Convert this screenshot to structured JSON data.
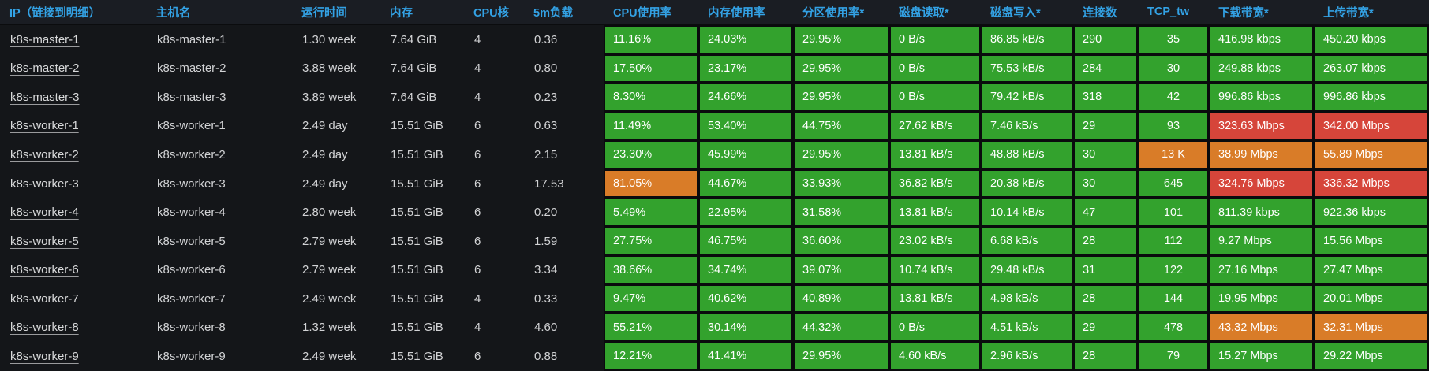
{
  "colors": {
    "green": "#33a22d",
    "orange": "#d97c28",
    "red": "#d6453a"
  },
  "header": {
    "columns": [
      "IP（链接到明细）",
      "主机名",
      "运行时间",
      "内存",
      "CPU核",
      "5m负载",
      "CPU使用率",
      "内存使用率",
      "分区使用率*",
      "磁盘读取*",
      "磁盘写入*",
      "连接数",
      "TCP_tw",
      "下载带宽*",
      "上传带宽*"
    ]
  },
  "rows": [
    {
      "ip": "k8s-master-1",
      "hostname": "k8s-master-1",
      "uptime": "1.30 week",
      "memory": "7.64 GiB",
      "cores": "4",
      "load5m": "0.36",
      "cpu": {
        "v": "11.16%",
        "c": "green"
      },
      "mem_usage": {
        "v": "24.03%",
        "c": "green"
      },
      "partition": {
        "v": "29.95%",
        "c": "green"
      },
      "disk_read": {
        "v": "0 B/s",
        "c": "green"
      },
      "disk_write": {
        "v": "86.85 kB/s",
        "c": "green"
      },
      "connections": {
        "v": "290",
        "c": "green"
      },
      "tcp_tw": {
        "v": "35",
        "c": "green"
      },
      "download": {
        "v": "416.98 kbps",
        "c": "green"
      },
      "upload": {
        "v": "450.20 kbps",
        "c": "green"
      }
    },
    {
      "ip": "k8s-master-2",
      "hostname": "k8s-master-2",
      "uptime": "3.88 week",
      "memory": "7.64 GiB",
      "cores": "4",
      "load5m": "0.80",
      "cpu": {
        "v": "17.50%",
        "c": "green"
      },
      "mem_usage": {
        "v": "23.17%",
        "c": "green"
      },
      "partition": {
        "v": "29.95%",
        "c": "green"
      },
      "disk_read": {
        "v": "0 B/s",
        "c": "green"
      },
      "disk_write": {
        "v": "75.53 kB/s",
        "c": "green"
      },
      "connections": {
        "v": "284",
        "c": "green"
      },
      "tcp_tw": {
        "v": "30",
        "c": "green"
      },
      "download": {
        "v": "249.88 kbps",
        "c": "green"
      },
      "upload": {
        "v": "263.07 kbps",
        "c": "green"
      }
    },
    {
      "ip": "k8s-master-3",
      "hostname": "k8s-master-3",
      "uptime": "3.89 week",
      "memory": "7.64 GiB",
      "cores": "4",
      "load5m": "0.23",
      "cpu": {
        "v": "8.30%",
        "c": "green"
      },
      "mem_usage": {
        "v": "24.66%",
        "c": "green"
      },
      "partition": {
        "v": "29.95%",
        "c": "green"
      },
      "disk_read": {
        "v": "0 B/s",
        "c": "green"
      },
      "disk_write": {
        "v": "79.42 kB/s",
        "c": "green"
      },
      "connections": {
        "v": "318",
        "c": "green"
      },
      "tcp_tw": {
        "v": "42",
        "c": "green"
      },
      "download": {
        "v": "996.86 kbps",
        "c": "green"
      },
      "upload": {
        "v": "996.86 kbps",
        "c": "green"
      }
    },
    {
      "ip": "k8s-worker-1",
      "hostname": "k8s-worker-1",
      "uptime": "2.49 day",
      "memory": "15.51 GiB",
      "cores": "6",
      "load5m": "0.63",
      "cpu": {
        "v": "11.49%",
        "c": "green"
      },
      "mem_usage": {
        "v": "53.40%",
        "c": "green"
      },
      "partition": {
        "v": "44.75%",
        "c": "green"
      },
      "disk_read": {
        "v": "27.62 kB/s",
        "c": "green"
      },
      "disk_write": {
        "v": "7.46 kB/s",
        "c": "green"
      },
      "connections": {
        "v": "29",
        "c": "green"
      },
      "tcp_tw": {
        "v": "93",
        "c": "green"
      },
      "download": {
        "v": "323.63 Mbps",
        "c": "red"
      },
      "upload": {
        "v": "342.00 Mbps",
        "c": "red"
      }
    },
    {
      "ip": "k8s-worker-2",
      "hostname": "k8s-worker-2",
      "uptime": "2.49 day",
      "memory": "15.51 GiB",
      "cores": "6",
      "load5m": "2.15",
      "cpu": {
        "v": "23.30%",
        "c": "green"
      },
      "mem_usage": {
        "v": "45.99%",
        "c": "green"
      },
      "partition": {
        "v": "29.95%",
        "c": "green"
      },
      "disk_read": {
        "v": "13.81 kB/s",
        "c": "green"
      },
      "disk_write": {
        "v": "48.88 kB/s",
        "c": "green"
      },
      "connections": {
        "v": "30",
        "c": "green"
      },
      "tcp_tw": {
        "v": "13 K",
        "c": "orange"
      },
      "download": {
        "v": "38.99 Mbps",
        "c": "orange"
      },
      "upload": {
        "v": "55.89 Mbps",
        "c": "orange"
      }
    },
    {
      "ip": "k8s-worker-3",
      "hostname": "k8s-worker-3",
      "uptime": "2.49 day",
      "memory": "15.51 GiB",
      "cores": "6",
      "load5m": "17.53",
      "cpu": {
        "v": "81.05%",
        "c": "orange"
      },
      "mem_usage": {
        "v": "44.67%",
        "c": "green"
      },
      "partition": {
        "v": "33.93%",
        "c": "green"
      },
      "disk_read": {
        "v": "36.82 kB/s",
        "c": "green"
      },
      "disk_write": {
        "v": "20.38 kB/s",
        "c": "green"
      },
      "connections": {
        "v": "30",
        "c": "green"
      },
      "tcp_tw": {
        "v": "645",
        "c": "green"
      },
      "download": {
        "v": "324.76 Mbps",
        "c": "red"
      },
      "upload": {
        "v": "336.32 Mbps",
        "c": "red"
      }
    },
    {
      "ip": "k8s-worker-4",
      "hostname": "k8s-worker-4",
      "uptime": "2.80 week",
      "memory": "15.51 GiB",
      "cores": "6",
      "load5m": "0.20",
      "cpu": {
        "v": "5.49%",
        "c": "green"
      },
      "mem_usage": {
        "v": "22.95%",
        "c": "green"
      },
      "partition": {
        "v": "31.58%",
        "c": "green"
      },
      "disk_read": {
        "v": "13.81 kB/s",
        "c": "green"
      },
      "disk_write": {
        "v": "10.14 kB/s",
        "c": "green"
      },
      "connections": {
        "v": "47",
        "c": "green"
      },
      "tcp_tw": {
        "v": "101",
        "c": "green"
      },
      "download": {
        "v": "811.39 kbps",
        "c": "green"
      },
      "upload": {
        "v": "922.36 kbps",
        "c": "green"
      }
    },
    {
      "ip": "k8s-worker-5",
      "hostname": "k8s-worker-5",
      "uptime": "2.79 week",
      "memory": "15.51 GiB",
      "cores": "6",
      "load5m": "1.59",
      "cpu": {
        "v": "27.75%",
        "c": "green"
      },
      "mem_usage": {
        "v": "46.75%",
        "c": "green"
      },
      "partition": {
        "v": "36.60%",
        "c": "green"
      },
      "disk_read": {
        "v": "23.02 kB/s",
        "c": "green"
      },
      "disk_write": {
        "v": "6.68 kB/s",
        "c": "green"
      },
      "connections": {
        "v": "28",
        "c": "green"
      },
      "tcp_tw": {
        "v": "112",
        "c": "green"
      },
      "download": {
        "v": "9.27 Mbps",
        "c": "green"
      },
      "upload": {
        "v": "15.56 Mbps",
        "c": "green"
      }
    },
    {
      "ip": "k8s-worker-6",
      "hostname": "k8s-worker-6",
      "uptime": "2.79 week",
      "memory": "15.51 GiB",
      "cores": "6",
      "load5m": "3.34",
      "cpu": {
        "v": "38.66%",
        "c": "green"
      },
      "mem_usage": {
        "v": "34.74%",
        "c": "green"
      },
      "partition": {
        "v": "39.07%",
        "c": "green"
      },
      "disk_read": {
        "v": "10.74 kB/s",
        "c": "green"
      },
      "disk_write": {
        "v": "29.48 kB/s",
        "c": "green"
      },
      "connections": {
        "v": "31",
        "c": "green"
      },
      "tcp_tw": {
        "v": "122",
        "c": "green"
      },
      "download": {
        "v": "27.16 Mbps",
        "c": "green"
      },
      "upload": {
        "v": "27.47 Mbps",
        "c": "green"
      }
    },
    {
      "ip": "k8s-worker-7",
      "hostname": "k8s-worker-7",
      "uptime": "2.49 week",
      "memory": "15.51 GiB",
      "cores": "4",
      "load5m": "0.33",
      "cpu": {
        "v": "9.47%",
        "c": "green"
      },
      "mem_usage": {
        "v": "40.62%",
        "c": "green"
      },
      "partition": {
        "v": "40.89%",
        "c": "green"
      },
      "disk_read": {
        "v": "13.81 kB/s",
        "c": "green"
      },
      "disk_write": {
        "v": "4.98 kB/s",
        "c": "green"
      },
      "connections": {
        "v": "28",
        "c": "green"
      },
      "tcp_tw": {
        "v": "144",
        "c": "green"
      },
      "download": {
        "v": "19.95 Mbps",
        "c": "green"
      },
      "upload": {
        "v": "20.01 Mbps",
        "c": "green"
      }
    },
    {
      "ip": "k8s-worker-8",
      "hostname": "k8s-worker-8",
      "uptime": "1.32 week",
      "memory": "15.51 GiB",
      "cores": "4",
      "load5m": "4.60",
      "cpu": {
        "v": "55.21%",
        "c": "green"
      },
      "mem_usage": {
        "v": "30.14%",
        "c": "green"
      },
      "partition": {
        "v": "44.32%",
        "c": "green"
      },
      "disk_read": {
        "v": "0 B/s",
        "c": "green"
      },
      "disk_write": {
        "v": "4.51 kB/s",
        "c": "green"
      },
      "connections": {
        "v": "29",
        "c": "green"
      },
      "tcp_tw": {
        "v": "478",
        "c": "green"
      },
      "download": {
        "v": "43.32 Mbps",
        "c": "orange"
      },
      "upload": {
        "v": "32.31 Mbps",
        "c": "orange"
      }
    },
    {
      "ip": "k8s-worker-9",
      "hostname": "k8s-worker-9",
      "uptime": "2.49 week",
      "memory": "15.51 GiB",
      "cores": "6",
      "load5m": "0.88",
      "cpu": {
        "v": "12.21%",
        "c": "green"
      },
      "mem_usage": {
        "v": "41.41%",
        "c": "green"
      },
      "partition": {
        "v": "29.95%",
        "c": "green"
      },
      "disk_read": {
        "v": "4.60 kB/s",
        "c": "green"
      },
      "disk_write": {
        "v": "2.96 kB/s",
        "c": "green"
      },
      "connections": {
        "v": "28",
        "c": "green"
      },
      "tcp_tw": {
        "v": "79",
        "c": "green"
      },
      "download": {
        "v": "15.27 Mbps",
        "c": "green"
      },
      "upload": {
        "v": "29.22 Mbps",
        "c": "green"
      }
    }
  ]
}
